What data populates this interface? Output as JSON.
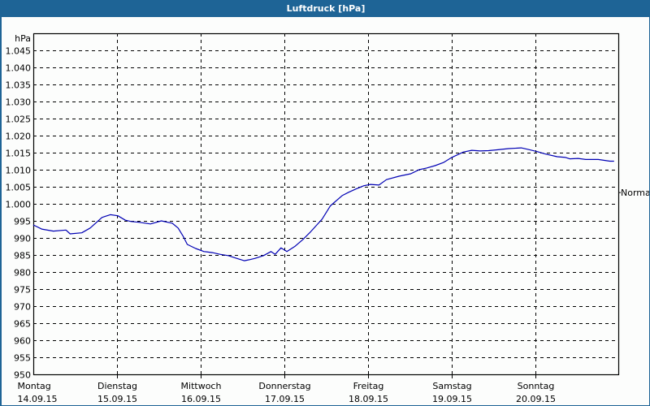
{
  "window": {
    "title": "Luftdruck [hPa]"
  },
  "colors": {
    "frame": "#1e6496",
    "title_text": "#ffffff",
    "background": "#fcfdfc",
    "series_line": "#0000b4",
    "grid": "#000000"
  },
  "chart_data": {
    "type": "line",
    "title": "Luftdruck [hPa]",
    "xlabel": "",
    "ylabel": "hPa",
    "ylim": [
      950,
      1047.5
    ],
    "y_ticks": [
      950,
      955,
      960,
      965,
      970,
      975,
      980,
      985,
      990,
      995,
      1000,
      1005,
      1010,
      1015,
      1020,
      1025,
      1030,
      1035,
      1040,
      1045
    ],
    "y_tick_labels": [
      "950",
      "955",
      "960",
      "965",
      "970",
      "975",
      "980",
      "985",
      "990",
      "995",
      "1.000",
      "1.005",
      "1.010",
      "1.015",
      "1.020",
      "1.025",
      "1.030",
      "1.035",
      "1.040",
      "1.045"
    ],
    "x_ticks": [
      {
        "day": "Montag",
        "date": "14.09.15"
      },
      {
        "day": "Dienstag",
        "date": "15.09.15"
      },
      {
        "day": "Mittwoch",
        "date": "16.09.15"
      },
      {
        "day": "Donnerstag",
        "date": "17.09.15"
      },
      {
        "day": "Freitag",
        "date": "18.09.15"
      },
      {
        "day": "Samstag",
        "date": "19.09.15"
      },
      {
        "day": "Sonntag",
        "date": "20.09.15"
      }
    ],
    "grid": true,
    "annotations": [
      {
        "label": "Normal",
        "value": 1003.3
      }
    ],
    "series": [
      {
        "name": "Luftdruck",
        "x_days": [
          0.0,
          0.1,
          0.24,
          0.39,
          0.44,
          0.58,
          0.68,
          0.82,
          0.92,
          1.01,
          1.1,
          1.17,
          1.26,
          1.4,
          1.53,
          1.66,
          1.73,
          1.79,
          1.84,
          1.94,
          2.04,
          2.14,
          2.23,
          2.33,
          2.43,
          2.52,
          2.58,
          2.65,
          2.75,
          2.84,
          2.89,
          2.96,
          3.03,
          3.13,
          3.22,
          3.31,
          3.45,
          3.55,
          3.69,
          3.77,
          3.85,
          3.95,
          4.03,
          4.13,
          4.22,
          4.37,
          4.51,
          4.61,
          4.7,
          4.8,
          4.9,
          5.0,
          5.14,
          5.24,
          5.34,
          5.44,
          5.53,
          5.68,
          5.83,
          5.92,
          6.02,
          6.12,
          6.26,
          6.36,
          6.41,
          6.51,
          6.6,
          6.7,
          6.75,
          6.89,
          6.94
        ],
        "values": [
          993.8,
          992.6,
          992.0,
          992.3,
          991.2,
          991.5,
          992.9,
          996.0,
          996.8,
          996.5,
          995.2,
          994.8,
          994.6,
          994.1,
          995.0,
          994.3,
          992.9,
          990.5,
          988.1,
          986.9,
          986.0,
          985.7,
          985.2,
          984.8,
          984.0,
          983.3,
          983.6,
          984.0,
          984.8,
          986.0,
          985.2,
          987.1,
          986.0,
          987.6,
          989.5,
          991.7,
          995.5,
          999.4,
          1002.4,
          1003.4,
          1004.3,
          1005.3,
          1005.7,
          1005.5,
          1007.1,
          1008.1,
          1008.8,
          1010.0,
          1010.5,
          1011.2,
          1012.1,
          1013.6,
          1015.2,
          1015.7,
          1015.5,
          1015.6,
          1015.8,
          1016.2,
          1016.4,
          1015.9,
          1015.3,
          1014.6,
          1013.8,
          1013.6,
          1013.2,
          1013.3,
          1013.0,
          1013.0,
          1013.0,
          1012.5,
          1012.5
        ]
      }
    ]
  }
}
